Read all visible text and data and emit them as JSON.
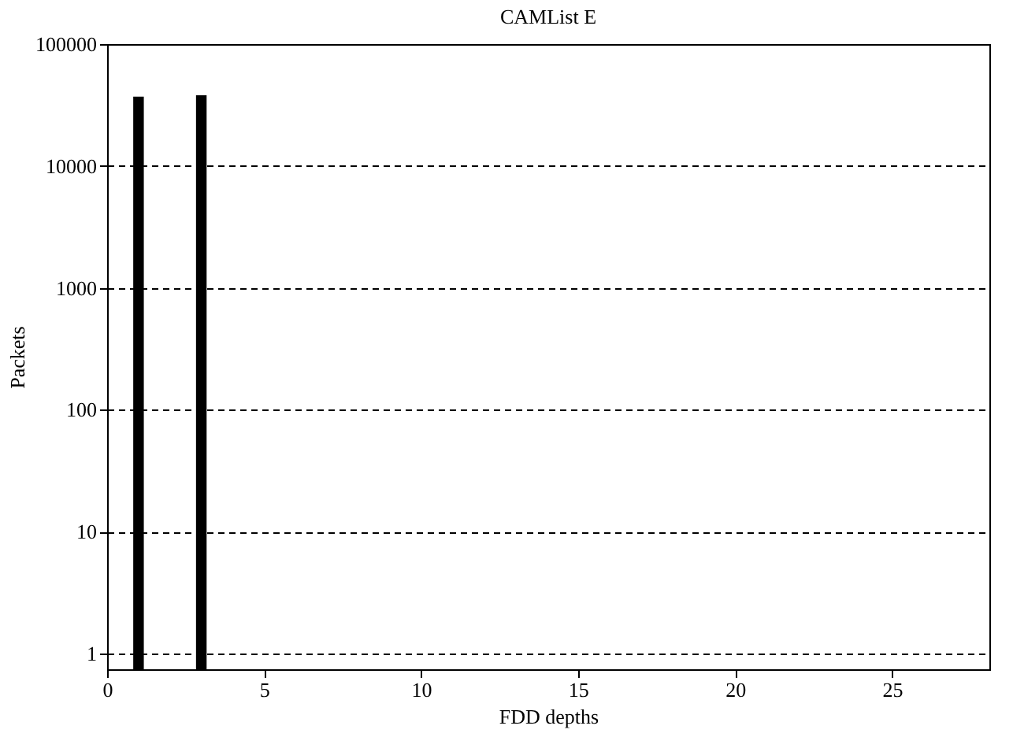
{
  "chart_data": {
    "type": "bar",
    "title": "CAMList E",
    "xlabel": "FDD depths",
    "ylabel": "Packets",
    "x": [
      1,
      3
    ],
    "values": [
      37000,
      38000
    ],
    "color": "#000000",
    "xlim": [
      0,
      28.1
    ],
    "xticks": [
      0,
      5,
      10,
      15,
      20,
      25
    ],
    "ylim": [
      0.74,
      100000
    ],
    "yticks": [
      1,
      10,
      100,
      1000,
      10000,
      100000
    ],
    "log": "y",
    "grid": "y"
  }
}
